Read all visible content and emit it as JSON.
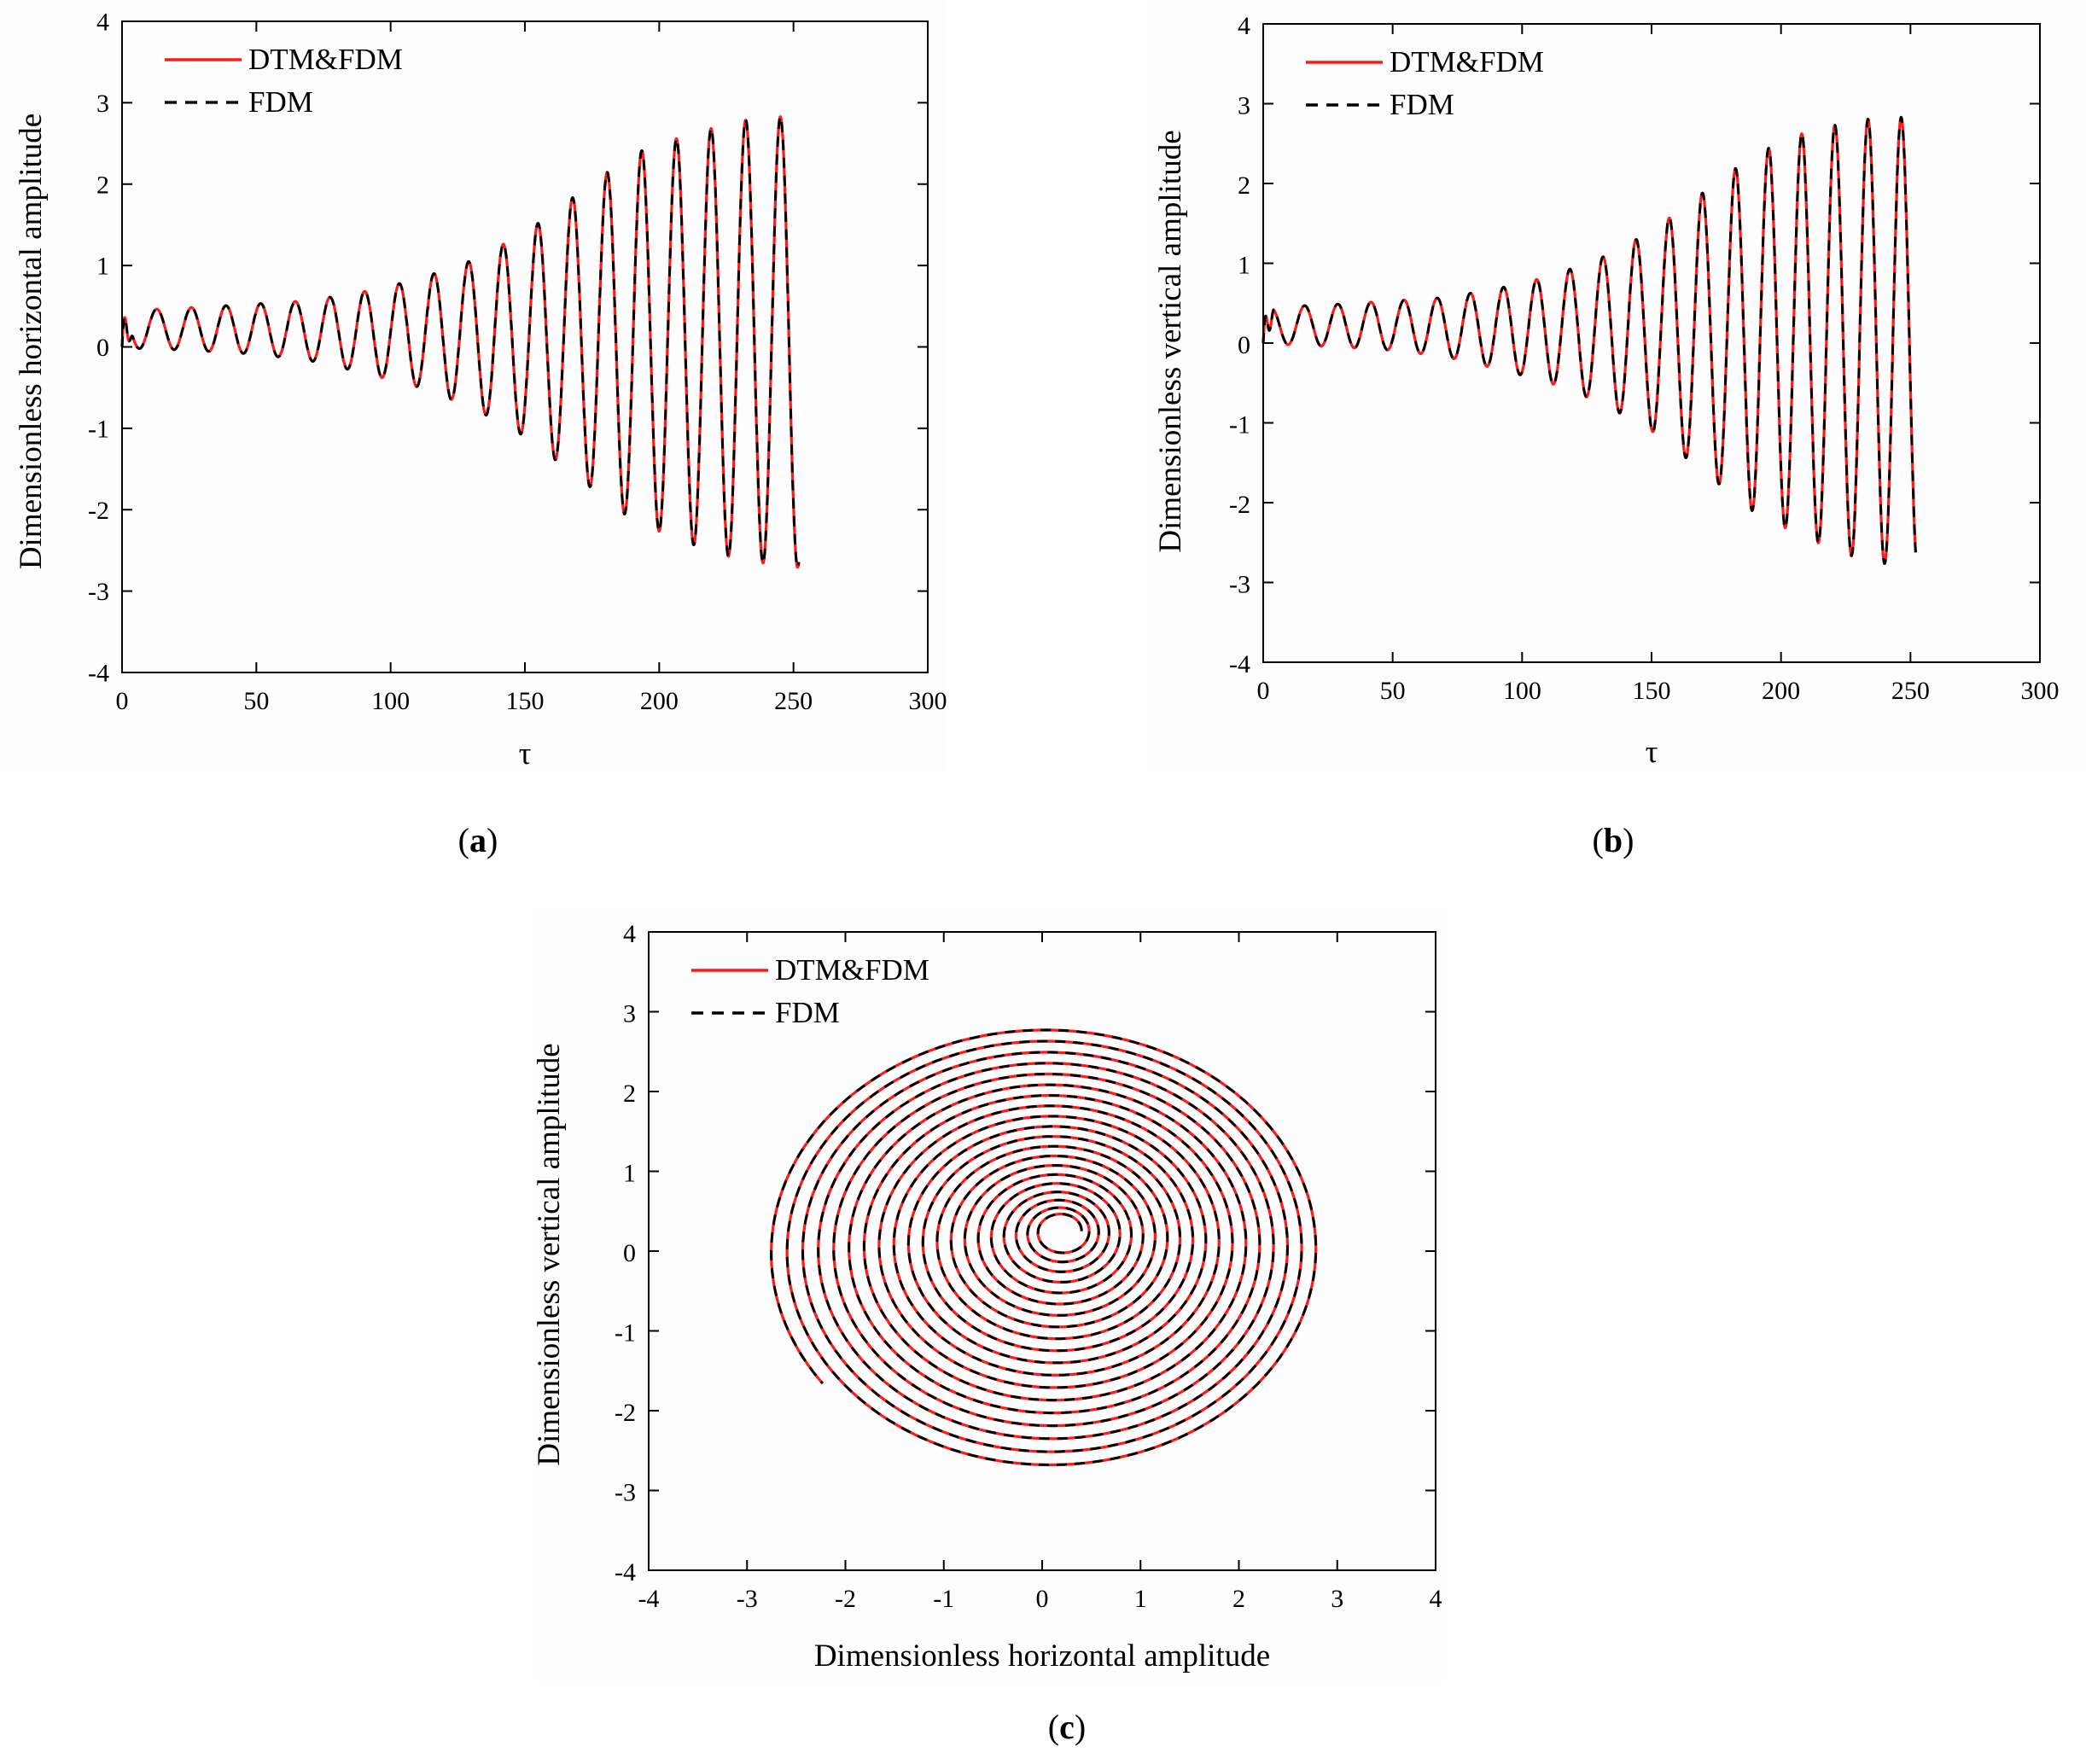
{
  "colors": {
    "red": "#ff1a1a",
    "black": "#000000"
  },
  "chart_data": [
    {
      "id": "a",
      "type": "line",
      "caption": "a",
      "xlabel": "τ",
      "ylabel": "Dimensionless horizontal amplitude",
      "xlim": [
        0,
        300
      ],
      "ylim": [
        -4,
        4
      ],
      "xticks": [
        "0",
        "50",
        "100",
        "150",
        "200",
        "250",
        "300"
      ],
      "yticks": [
        "-4",
        "-3",
        "-2",
        "-1",
        "0",
        "1",
        "2",
        "3",
        "4"
      ],
      "legend": {
        "position": "top-left",
        "entries": [
          "DTM&FDM",
          "FDM"
        ]
      },
      "series": [
        {
          "name": "DTM&FDM",
          "color": "#ff1a1a",
          "style": "solid"
        },
        {
          "name": "FDM",
          "color": "#000000",
          "style": "dashed"
        }
      ],
      "signal": {
        "t_end": 252,
        "period": 12.9,
        "envelope_tau": [
          0,
          10,
          30,
          50,
          70,
          90,
          110,
          130,
          150,
          170,
          190,
          210,
          230,
          252
        ],
        "offset": [
          0.2,
          0.22,
          0.22,
          0.22,
          0.2,
          0.18,
          0.17,
          0.16,
          0.15,
          0.14,
          0.12,
          0.1,
          0.08,
          0.07
        ],
        "amplitude": [
          0.22,
          0.24,
          0.27,
          0.31,
          0.37,
          0.5,
          0.66,
          0.9,
          1.25,
          1.75,
          2.25,
          2.5,
          2.7,
          2.78
        ],
        "phase": 1.57
      }
    },
    {
      "id": "b",
      "type": "line",
      "caption": "b",
      "xlabel": "τ",
      "ylabel": "Dimensionless vertical amplitude",
      "xlim": [
        0,
        300
      ],
      "ylim": [
        -4,
        4
      ],
      "xticks": [
        "0",
        "50",
        "100",
        "150",
        "200",
        "250",
        "300"
      ],
      "yticks": [
        "-4",
        "-3",
        "-2",
        "-1",
        "0",
        "1",
        "2",
        "3",
        "4"
      ],
      "legend": {
        "position": "top-left",
        "entries": [
          "DTM&FDM",
          "FDM"
        ]
      },
      "series": [
        {
          "name": "DTM&FDM",
          "color": "#ff1a1a",
          "style": "solid"
        },
        {
          "name": "FDM",
          "color": "#000000",
          "style": "dashed"
        }
      ],
      "signal": {
        "t_end": 252,
        "period": 12.8,
        "envelope_tau": [
          0,
          10,
          30,
          50,
          70,
          90,
          110,
          130,
          150,
          170,
          190,
          210,
          230,
          252
        ],
        "offset": [
          0.2,
          0.22,
          0.22,
          0.22,
          0.2,
          0.18,
          0.17,
          0.16,
          0.15,
          0.14,
          0.12,
          0.1,
          0.05,
          0.0
        ],
        "amplitude": [
          0.22,
          0.24,
          0.27,
          0.31,
          0.37,
          0.5,
          0.66,
          0.9,
          1.25,
          1.75,
          2.25,
          2.55,
          2.75,
          2.84
        ],
        "phase": 0.0
      }
    },
    {
      "id": "c",
      "type": "line",
      "caption": "c",
      "xlabel": "Dimensionless horizontal amplitude",
      "ylabel": "Dimensionless vertical amplitude",
      "xlim": [
        -4,
        4
      ],
      "ylim": [
        -4,
        4
      ],
      "xticks": [
        "-4",
        "-3",
        "-2",
        "-1",
        "0",
        "1",
        "2",
        "3",
        "4"
      ],
      "yticks": [
        "-4",
        "-3",
        "-2",
        "-1",
        "0",
        "1",
        "2",
        "3",
        "4"
      ],
      "legend": {
        "position": "top-left",
        "entries": [
          "DTM&FDM",
          "FDM"
        ]
      },
      "series": [
        {
          "name": "DTM&FDM",
          "color": "#ff1a1a",
          "style": "solid"
        },
        {
          "name": "FDM",
          "color": "#000000",
          "style": "dashed"
        }
      ],
      "orbit": {
        "turns": 19.6,
        "center_start": [
          0.2,
          0.25
        ],
        "center_end": [
          0.05,
          0.0
        ],
        "radius_start": 0.2,
        "radius_end": 2.82
      }
    }
  ]
}
